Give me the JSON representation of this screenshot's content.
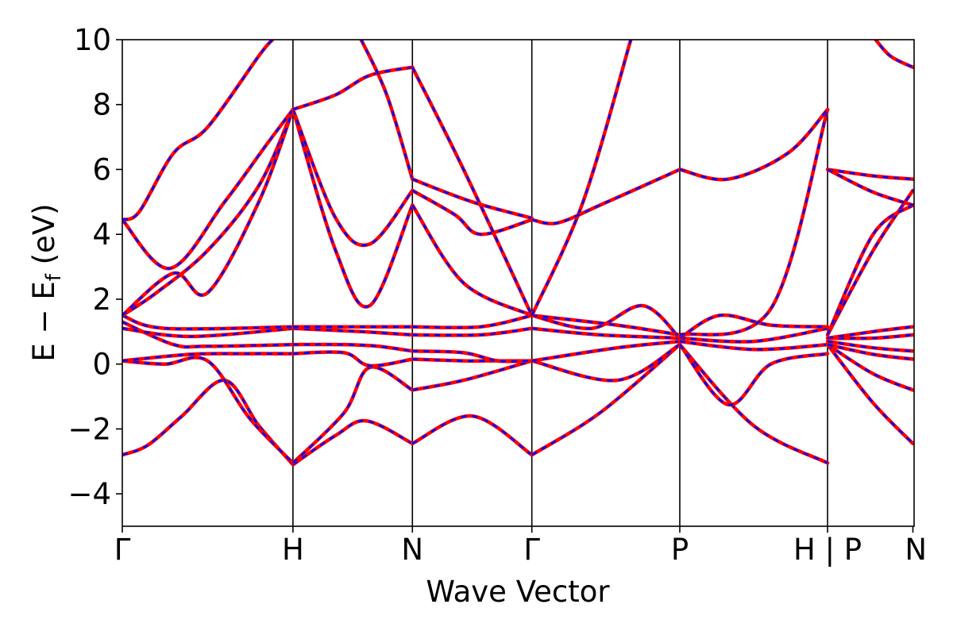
{
  "chart_data": {
    "type": "line",
    "xlabel": "Wave Vector",
    "ylabel_main": "E − E",
    "ylabel_sub": "f",
    "ylabel_unit": " (eV)",
    "ylim": [
      -5,
      10
    ],
    "xlim": [
      0,
      4.64
    ],
    "yticks": [
      -4,
      -2,
      0,
      2,
      4,
      6,
      8,
      10
    ],
    "ytick_labels": [
      "−4",
      "−2",
      "0",
      "2",
      "4",
      "6",
      "8",
      "10"
    ],
    "kpoints": [
      {
        "label": "Γ",
        "x": 0.0
      },
      {
        "label": "H",
        "x": 1.0
      },
      {
        "label": "N",
        "x": 1.7
      },
      {
        "label": "Γ",
        "x": 2.4
      },
      {
        "label": "P",
        "x": 3.267
      },
      {
        "label": "H | P",
        "x": 4.133
      },
      {
        "label": "N",
        "x": 4.633
      }
    ],
    "colors": {
      "band_solid": "#ff0000",
      "band_dashed": "#0000ff"
    },
    "segments": [
      {
        "from": "Γ",
        "to": "H",
        "bands": [
          [
            [
              0,
              -2.8
            ],
            [
              0.15,
              -2.5
            ],
            [
              0.35,
              -1.6
            ],
            [
              0.6,
              -0.5
            ],
            [
              0.8,
              -1.9
            ],
            [
              1.0,
              -3.1
            ]
          ],
          [
            [
              0,
              0.1
            ],
            [
              0.25,
              0.0
            ],
            [
              0.5,
              0.1
            ],
            [
              0.75,
              -1.7
            ],
            [
              1.0,
              -3.05
            ]
          ],
          [
            [
              0,
              0.1
            ],
            [
              0.4,
              0.3
            ],
            [
              0.7,
              0.32
            ],
            [
              1.0,
              0.32
            ]
          ],
          [
            [
              0,
              1.3
            ],
            [
              0.3,
              0.6
            ],
            [
              0.5,
              0.55
            ],
            [
              1.0,
              0.6
            ]
          ],
          [
            [
              0,
              1.1
            ],
            [
              0.4,
              0.85
            ],
            [
              1.0,
              1.1
            ]
          ],
          [
            [
              0,
              1.5
            ],
            [
              0.25,
              1.1
            ],
            [
              1.0,
              1.15
            ]
          ],
          [
            [
              0,
              1.5
            ],
            [
              0.2,
              2.2
            ],
            [
              0.5,
              3.5
            ],
            [
              0.8,
              5.5
            ],
            [
              1.0,
              7.85
            ]
          ],
          [
            [
              0,
              1.5
            ],
            [
              0.3,
              2.8
            ],
            [
              0.5,
              2.2
            ],
            [
              0.8,
              5.0
            ],
            [
              1.0,
              7.85
            ]
          ],
          [
            [
              0,
              4.45
            ],
            [
              0.28,
              2.95
            ],
            [
              0.6,
              5.0
            ],
            [
              0.85,
              6.8
            ],
            [
              1.0,
              7.85
            ]
          ],
          [
            [
              0,
              4.45
            ],
            [
              0.1,
              4.7
            ],
            [
              0.3,
              6.5
            ],
            [
              0.5,
              7.3
            ],
            [
              0.8,
              9.5
            ],
            [
              0.88,
              10.0
            ]
          ]
        ]
      },
      {
        "from": "H",
        "to": "N",
        "bands": [
          [
            [
              1.0,
              -3.1
            ],
            [
              1.25,
              -2.2
            ],
            [
              1.43,
              -1.75
            ],
            [
              1.7,
              -2.45
            ]
          ],
          [
            [
              1.0,
              -3.05
            ],
            [
              1.3,
              -1.5
            ],
            [
              1.45,
              -0.1
            ],
            [
              1.7,
              -0.8
            ]
          ],
          [
            [
              1.0,
              0.32
            ],
            [
              1.3,
              0.35
            ],
            [
              1.45,
              -0.05
            ],
            [
              1.7,
              0.15
            ]
          ],
          [
            [
              1.0,
              0.6
            ],
            [
              1.3,
              0.6
            ],
            [
              1.5,
              0.55
            ],
            [
              1.7,
              0.4
            ]
          ],
          [
            [
              1.0,
              1.1
            ],
            [
              1.4,
              1.0
            ],
            [
              1.7,
              0.9
            ]
          ],
          [
            [
              1.0,
              1.15
            ],
            [
              1.4,
              1.15
            ],
            [
              1.7,
              1.15
            ]
          ],
          [
            [
              1.0,
              7.85
            ],
            [
              1.25,
              3.5
            ],
            [
              1.45,
              1.8
            ],
            [
              1.7,
              4.9
            ]
          ],
          [
            [
              1.0,
              7.85
            ],
            [
              1.25,
              4.5
            ],
            [
              1.45,
              3.7
            ],
            [
              1.7,
              5.35
            ]
          ],
          [
            [
              1.0,
              7.85
            ],
            [
              1.25,
              8.3
            ],
            [
              1.45,
              8.9
            ],
            [
              1.7,
              9.15
            ]
          ],
          [
            [
              1.4,
              10.0
            ],
            [
              1.55,
              8.3
            ],
            [
              1.7,
              5.7
            ]
          ]
        ]
      },
      {
        "from": "N",
        "to": "Γ",
        "bands": [
          [
            [
              1.7,
              -2.45
            ],
            [
              2.05,
              -1.6
            ],
            [
              2.4,
              -2.8
            ]
          ],
          [
            [
              1.7,
              -0.8
            ],
            [
              2.0,
              -0.5
            ],
            [
              2.4,
              0.1
            ]
          ],
          [
            [
              1.7,
              0.15
            ],
            [
              2.0,
              0.1
            ],
            [
              2.2,
              0.1
            ],
            [
              2.4,
              0.1
            ]
          ],
          [
            [
              1.7,
              0.4
            ],
            [
              2.0,
              0.35
            ],
            [
              2.2,
              0.1
            ],
            [
              2.4,
              0.1
            ]
          ],
          [
            [
              1.7,
              0.9
            ],
            [
              2.1,
              0.9
            ],
            [
              2.4,
              1.1
            ]
          ],
          [
            [
              1.7,
              1.15
            ],
            [
              2.1,
              1.15
            ],
            [
              2.4,
              1.5
            ]
          ],
          [
            [
              1.7,
              4.9
            ],
            [
              2.0,
              2.5
            ],
            [
              2.4,
              1.5
            ]
          ],
          [
            [
              1.7,
              5.35
            ],
            [
              1.95,
              4.6
            ],
            [
              2.1,
              4.0
            ],
            [
              2.4,
              4.45
            ]
          ],
          [
            [
              1.7,
              5.7
            ],
            [
              2.05,
              5.0
            ],
            [
              2.4,
              4.5
            ]
          ],
          [
            [
              1.7,
              9.15
            ],
            [
              2.0,
              6.0
            ],
            [
              2.4,
              1.5
            ]
          ]
        ]
      },
      {
        "from": "Γ",
        "to": "P",
        "bands": [
          [
            [
              2.4,
              -2.8
            ],
            [
              2.8,
              -1.5
            ],
            [
              3.267,
              0.6
            ]
          ],
          [
            [
              2.4,
              0.1
            ],
            [
              2.9,
              -0.5
            ],
            [
              3.267,
              0.6
            ]
          ],
          [
            [
              2.4,
              0.1
            ],
            [
              2.9,
              0.5
            ],
            [
              3.267,
              0.7
            ]
          ],
          [
            [
              2.4,
              1.1
            ],
            [
              2.8,
              0.9
            ],
            [
              3.267,
              0.8
            ]
          ],
          [
            [
              2.4,
              1.5
            ],
            [
              2.75,
              1.1
            ],
            [
              3.05,
              1.8
            ],
            [
              3.267,
              0.8
            ]
          ],
          [
            [
              2.4,
              1.5
            ],
            [
              2.9,
              1.2
            ],
            [
              3.267,
              0.9
            ]
          ],
          [
            [
              2.4,
              1.5
            ],
            [
              2.7,
              5.0
            ],
            [
              2.98,
              10.0
            ]
          ],
          [
            [
              2.4,
              4.45
            ],
            [
              2.55,
              4.35
            ],
            [
              2.8,
              4.9
            ],
            [
              3.267,
              6.0
            ]
          ]
        ]
      },
      {
        "from": "P",
        "to": "H",
        "bands": [
          [
            [
              3.267,
              0.6
            ],
            [
              3.7,
              -1.9
            ],
            [
              4.133,
              -3.05
            ]
          ],
          [
            [
              3.267,
              0.6
            ],
            [
              3.55,
              -1.25
            ],
            [
              3.8,
              0.0
            ],
            [
              4.133,
              0.32
            ]
          ],
          [
            [
              3.267,
              0.7
            ],
            [
              3.7,
              0.45
            ],
            [
              4.133,
              0.6
            ]
          ],
          [
            [
              3.267,
              0.8
            ],
            [
              3.7,
              0.7
            ],
            [
              4.133,
              1.1
            ]
          ],
          [
            [
              3.267,
              0.8
            ],
            [
              3.5,
              1.5
            ],
            [
              3.8,
              1.2
            ],
            [
              4.133,
              1.15
            ]
          ],
          [
            [
              3.267,
              0.9
            ],
            [
              3.8,
              1.7
            ],
            [
              4.133,
              7.85
            ]
          ],
          [
            [
              3.267,
              6.0
            ],
            [
              3.55,
              5.7
            ],
            [
              3.9,
              6.5
            ],
            [
              4.133,
              7.85
            ]
          ]
        ]
      },
      {
        "from": "P",
        "to": "N",
        "bands": [
          [
            [
              4.133,
              0.6
            ],
            [
              4.4,
              -1.2
            ],
            [
              4.633,
              -2.45
            ]
          ],
          [
            [
              4.133,
              0.6
            ],
            [
              4.4,
              -0.3
            ],
            [
              4.633,
              -0.8
            ]
          ],
          [
            [
              4.133,
              0.6
            ],
            [
              4.4,
              0.3
            ],
            [
              4.633,
              0.15
            ]
          ],
          [
            [
              4.133,
              0.7
            ],
            [
              4.4,
              0.5
            ],
            [
              4.633,
              0.4
            ]
          ],
          [
            [
              4.133,
              0.8
            ],
            [
              4.4,
              0.8
            ],
            [
              4.633,
              0.9
            ]
          ],
          [
            [
              4.133,
              0.8
            ],
            [
              4.4,
              1.0
            ],
            [
              4.633,
              1.15
            ]
          ],
          [
            [
              4.133,
              0.9
            ],
            [
              4.4,
              3.5
            ],
            [
              4.633,
              5.35
            ]
          ],
          [
            [
              4.133,
              0.9
            ],
            [
              4.4,
              4.0
            ],
            [
              4.633,
              4.9
            ]
          ],
          [
            [
              4.133,
              6.0
            ],
            [
              4.4,
              5.8
            ],
            [
              4.633,
              5.7
            ]
          ],
          [
            [
              4.133,
              6.0
            ],
            [
              4.4,
              5.3
            ],
            [
              4.633,
              4.9
            ]
          ],
          [
            [
              4.4,
              10.1
            ],
            [
              4.5,
              9.5
            ],
            [
              4.633,
              9.15
            ]
          ]
        ]
      }
    ]
  }
}
